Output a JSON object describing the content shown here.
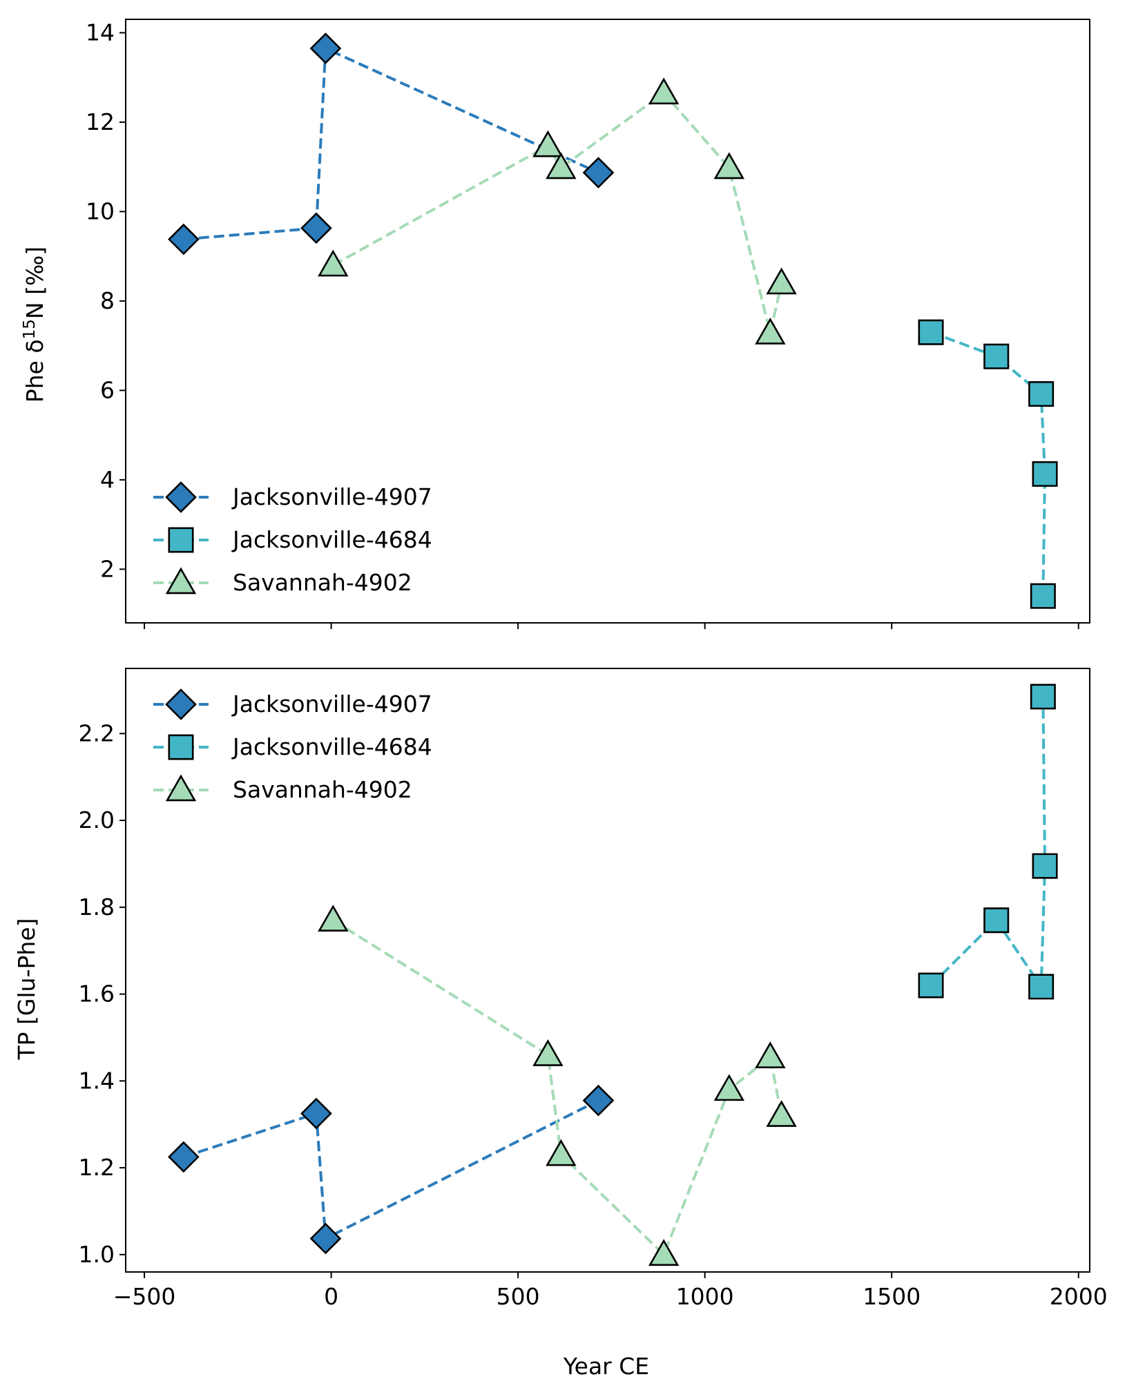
{
  "colors": {
    "jacksonville_4907": "#2b7bba",
    "jacksonville_4684": "#42b6c6",
    "savannah_4902": "#a5dbb7",
    "marker_edge": "#000000",
    "axes": "#000000"
  },
  "chart_data": [
    {
      "type": "line",
      "title": "",
      "xlabel": "",
      "ylabel": "Phe δ¹⁵N [‰]",
      "ylabel_parts": {
        "prefix": "Phe δ",
        "sup": "15",
        "suffix": "N [‰]"
      },
      "xlim": [
        -550,
        2030
      ],
      "ylim": [
        0.8,
        14.3
      ],
      "xticks": [
        -500,
        0,
        500,
        1000,
        1500,
        2000
      ],
      "xtick_labels": [],
      "yticks": [
        2,
        4,
        6,
        8,
        10,
        12,
        14
      ],
      "ytick_labels": [
        "2",
        "4",
        "6",
        "8",
        "10",
        "12",
        "14"
      ],
      "grid": false,
      "legend_position": "lower-left",
      "series": [
        {
          "name": "Jacksonville-4907",
          "marker": "diamond",
          "color_key": "jacksonville_4907",
          "x": [
            -395,
            -40,
            -15,
            715
          ],
          "y": [
            9.38,
            9.63,
            13.65,
            10.87
          ]
        },
        {
          "name": "Jacksonville-4684",
          "marker": "square",
          "color_key": "jacksonville_4684",
          "x": [
            1605,
            1780,
            1900,
            1910,
            1905
          ],
          "y": [
            7.3,
            6.76,
            5.92,
            4.13,
            1.4
          ]
        },
        {
          "name": "Savannah-4902",
          "marker": "triangle",
          "color_key": "savannah_4902",
          "x": [
            5,
            580,
            615,
            890,
            1065,
            1175,
            1205
          ],
          "y": [
            8.8,
            11.47,
            10.98,
            12.65,
            10.98,
            7.28,
            8.4
          ]
        }
      ]
    },
    {
      "type": "line",
      "title": "",
      "xlabel": "Year CE",
      "ylabel": "TP [Glu-Phe]",
      "xlim": [
        -550,
        2030
      ],
      "ylim": [
        0.96,
        2.35
      ],
      "xticks": [
        -500,
        0,
        500,
        1000,
        1500,
        2000
      ],
      "xtick_labels": [
        "−500",
        "0",
        "500",
        "1000",
        "1500",
        "2000"
      ],
      "yticks": [
        1.0,
        1.2,
        1.4,
        1.6,
        1.8,
        2.0,
        2.2
      ],
      "ytick_labels": [
        "1.0",
        "1.2",
        "1.4",
        "1.6",
        "1.8",
        "2.0",
        "2.2"
      ],
      "grid": false,
      "legend_position": "upper-left",
      "series": [
        {
          "name": "Jacksonville-4907",
          "marker": "diamond",
          "color_key": "jacksonville_4907",
          "x": [
            -395,
            -40,
            -15,
            715
          ],
          "y": [
            1.225,
            1.325,
            1.037,
            1.355
          ]
        },
        {
          "name": "Jacksonville-4684",
          "marker": "square",
          "color_key": "jacksonville_4684",
          "x": [
            1605,
            1780,
            1900,
            1910,
            1905
          ],
          "y": [
            1.62,
            1.77,
            1.617,
            1.895,
            2.285
          ]
        },
        {
          "name": "Savannah-4902",
          "marker": "triangle",
          "color_key": "savannah_4902",
          "x": [
            5,
            580,
            615,
            890,
            1065,
            1175,
            1205
          ],
          "y": [
            1.77,
            1.46,
            1.23,
            1.0,
            1.38,
            1.455,
            1.32
          ]
        }
      ]
    }
  ]
}
